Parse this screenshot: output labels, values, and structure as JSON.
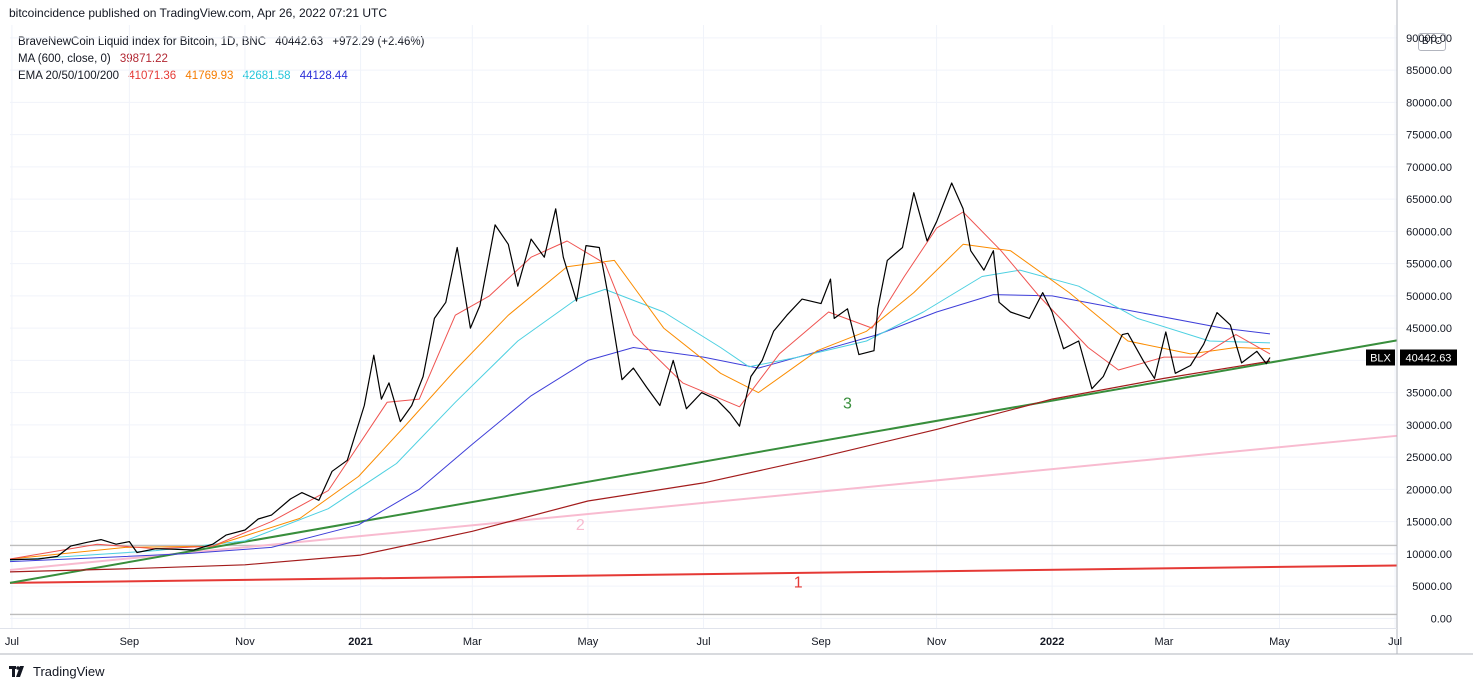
{
  "header": {
    "text": "bitcoincidence published on TradingView.com, Apr 26, 2022 07:21 UTC"
  },
  "legend": {
    "symbol": {
      "label": "BraveNewCoin Liquid Index for Bitcoin, 1D, BNC",
      "value": "40442.63",
      "change": "+972.29 (+2.46%)"
    },
    "ma": {
      "label": "MA (600, close, 0)",
      "value": "39871.22",
      "color": "#b22833"
    },
    "ema": {
      "label": "EMA 20/50/100/200",
      "values": [
        "41071.36",
        "41769.93",
        "42681.58",
        "44128.44"
      ],
      "colors": [
        "#e53935",
        "#f57c00",
        "#26c6da",
        "#2a2ed8"
      ]
    }
  },
  "currency_badge": "BTC",
  "footer": {
    "logo_text": "TradingView"
  },
  "colors": {
    "price": "#000000",
    "ema20": "#ef5350",
    "ema50": "#fb8c00",
    "ema100": "#4dd0e1",
    "ema200": "#3f3fd9",
    "ma600": "#a31c1c",
    "line1": "#e53935",
    "line2": "#f8bbd0",
    "line3": "#388e3c",
    "grid": "#f0f3fa",
    "hline": "#bdbdbd",
    "badge_bg": "#000000",
    "badge_fg": "#ffffff"
  },
  "chart_data": {
    "type": "line",
    "title": "",
    "y_axis": {
      "ticks": [
        "0.00",
        "5000.00",
        "10000.00",
        "15000.00",
        "20000.00",
        "25000.00",
        "30000.00",
        "35000.00",
        "40000.00",
        "45000.00",
        "50000.00",
        "55000.00",
        "60000.00",
        "65000.00",
        "70000.00",
        "75000.00",
        "80000.00",
        "85000.00",
        "90000.00"
      ],
      "ylim": [
        -1500,
        92000
      ]
    },
    "x_axis": {
      "ticks": [
        {
          "label": "Jul",
          "date": "2020-07-01",
          "bold": false
        },
        {
          "label": "Sep",
          "date": "2020-09-01",
          "bold": false
        },
        {
          "label": "Nov",
          "date": "2020-11-01",
          "bold": false
        },
        {
          "label": "2021",
          "date": "2021-01-01",
          "bold": true
        },
        {
          "label": "Mar",
          "date": "2021-03-01",
          "bold": false
        },
        {
          "label": "May",
          "date": "2021-05-01",
          "bold": false
        },
        {
          "label": "Jul",
          "date": "2021-07-01",
          "bold": false
        },
        {
          "label": "Sep",
          "date": "2021-09-01",
          "bold": false
        },
        {
          "label": "Nov",
          "date": "2021-11-01",
          "bold": false
        },
        {
          "label": "2022",
          "date": "2022-01-01",
          "bold": true
        },
        {
          "label": "Mar",
          "date": "2022-03-01",
          "bold": false
        },
        {
          "label": "May",
          "date": "2022-05-01",
          "bold": false
        },
        {
          "label": "Jul",
          "date": "2022-07-01",
          "bold": false
        }
      ],
      "xlim": [
        "2020-06-30",
        "2022-07-02"
      ]
    },
    "last_price": {
      "label": "BLX",
      "value": "40442.63",
      "y": 40442.63
    },
    "series": [
      {
        "key": "price",
        "points": [
          [
            "2020-06-30",
            9100
          ],
          [
            "2020-07-15",
            9200
          ],
          [
            "2020-07-25",
            9600
          ],
          [
            "2020-08-01",
            11200
          ],
          [
            "2020-08-10",
            11800
          ],
          [
            "2020-08-17",
            12200
          ],
          [
            "2020-08-25",
            11500
          ],
          [
            "2020-09-01",
            11900
          ],
          [
            "2020-09-05",
            10200
          ],
          [
            "2020-09-15",
            10800
          ],
          [
            "2020-09-25",
            10700
          ],
          [
            "2020-10-05",
            10600
          ],
          [
            "2020-10-15",
            11500
          ],
          [
            "2020-10-22",
            12900
          ],
          [
            "2020-11-01",
            13700
          ],
          [
            "2020-11-08",
            15400
          ],
          [
            "2020-11-15",
            16000
          ],
          [
            "2020-11-25",
            18500
          ],
          [
            "2020-12-01",
            19500
          ],
          [
            "2020-12-10",
            18300
          ],
          [
            "2020-12-17",
            22800
          ],
          [
            "2020-12-25",
            24500
          ],
          [
            "2021-01-03",
            33000
          ],
          [
            "2021-01-08",
            40800
          ],
          [
            "2021-01-12",
            34000
          ],
          [
            "2021-01-16",
            36500
          ],
          [
            "2021-01-22",
            30500
          ],
          [
            "2021-01-28",
            33000
          ],
          [
            "2021-02-03",
            37500
          ],
          [
            "2021-02-09",
            46500
          ],
          [
            "2021-02-15",
            49000
          ],
          [
            "2021-02-21",
            57500
          ],
          [
            "2021-02-28",
            45000
          ],
          [
            "2021-03-05",
            48500
          ],
          [
            "2021-03-13",
            61000
          ],
          [
            "2021-03-20",
            58000
          ],
          [
            "2021-03-25",
            51500
          ],
          [
            "2021-04-01",
            58800
          ],
          [
            "2021-04-08",
            56000
          ],
          [
            "2021-04-14",
            63500
          ],
          [
            "2021-04-18",
            56000
          ],
          [
            "2021-04-25",
            49200
          ],
          [
            "2021-04-30",
            57800
          ],
          [
            "2021-05-07",
            57500
          ],
          [
            "2021-05-12",
            49500
          ],
          [
            "2021-05-19",
            37000
          ],
          [
            "2021-05-25",
            38800
          ],
          [
            "2021-06-01",
            35800
          ],
          [
            "2021-06-08",
            33000
          ],
          [
            "2021-06-15",
            40000
          ],
          [
            "2021-06-22",
            32500
          ],
          [
            "2021-06-30",
            35000
          ],
          [
            "2021-07-08",
            33900
          ],
          [
            "2021-07-15",
            31800
          ],
          [
            "2021-07-20",
            29800
          ],
          [
            "2021-07-26",
            37500
          ],
          [
            "2021-08-01",
            40000
          ],
          [
            "2021-08-07",
            44500
          ],
          [
            "2021-08-14",
            47000
          ],
          [
            "2021-08-22",
            49500
          ],
          [
            "2021-09-01",
            48800
          ],
          [
            "2021-09-06",
            52600
          ],
          [
            "2021-09-08",
            46500
          ],
          [
            "2021-09-15",
            48000
          ],
          [
            "2021-09-21",
            40900
          ],
          [
            "2021-09-29",
            41500
          ],
          [
            "2021-10-01",
            48000
          ],
          [
            "2021-10-06",
            55500
          ],
          [
            "2021-10-14",
            57500
          ],
          [
            "2021-10-20",
            66000
          ],
          [
            "2021-10-27",
            58500
          ],
          [
            "2021-11-01",
            61500
          ],
          [
            "2021-11-09",
            67500
          ],
          [
            "2021-11-15",
            63500
          ],
          [
            "2021-11-19",
            57000
          ],
          [
            "2021-11-26",
            54000
          ],
          [
            "2021-12-01",
            57000
          ],
          [
            "2021-12-04",
            49000
          ],
          [
            "2021-12-10",
            47500
          ],
          [
            "2021-12-20",
            46500
          ],
          [
            "2021-12-27",
            50500
          ],
          [
            "2022-01-01",
            47500
          ],
          [
            "2022-01-07",
            41800
          ],
          [
            "2022-01-15",
            43000
          ],
          [
            "2022-01-22",
            35600
          ],
          [
            "2022-01-28",
            37500
          ],
          [
            "2022-02-07",
            44000
          ],
          [
            "2022-02-10",
            44200
          ],
          [
            "2022-02-18",
            40000
          ],
          [
            "2022-02-24",
            37200
          ],
          [
            "2022-03-02",
            44400
          ],
          [
            "2022-03-07",
            38000
          ],
          [
            "2022-03-15",
            39200
          ],
          [
            "2022-03-22",
            42500
          ],
          [
            "2022-03-29",
            47400
          ],
          [
            "2022-04-05",
            45500
          ],
          [
            "2022-04-11",
            39600
          ],
          [
            "2022-04-15",
            40500
          ],
          [
            "2022-04-19",
            41400
          ],
          [
            "2022-04-24",
            39500
          ],
          [
            "2022-04-26",
            40442
          ]
        ]
      },
      {
        "key": "ema20",
        "points": [
          [
            "2020-06-30",
            9200
          ],
          [
            "2020-08-15",
            11500
          ],
          [
            "2020-09-15",
            10800
          ],
          [
            "2020-10-15",
            11200
          ],
          [
            "2020-11-15",
            15000
          ],
          [
            "2020-12-15",
            19800
          ],
          [
            "2021-01-15",
            33500
          ],
          [
            "2021-02-01",
            34000
          ],
          [
            "2021-02-20",
            47000
          ],
          [
            "2021-03-10",
            50000
          ],
          [
            "2021-04-01",
            56000
          ],
          [
            "2021-04-20",
            58500
          ],
          [
            "2021-05-10",
            55000
          ],
          [
            "2021-05-25",
            44000
          ],
          [
            "2021-06-20",
            36500
          ],
          [
            "2021-07-20",
            32800
          ],
          [
            "2021-08-10",
            41000
          ],
          [
            "2021-09-05",
            47500
          ],
          [
            "2021-09-28",
            45000
          ],
          [
            "2021-10-15",
            53000
          ],
          [
            "2021-11-01",
            60500
          ],
          [
            "2021-11-15",
            63000
          ],
          [
            "2021-12-05",
            57000
          ],
          [
            "2021-12-25",
            50000
          ],
          [
            "2022-01-20",
            42000
          ],
          [
            "2022-02-05",
            38500
          ],
          [
            "2022-03-01",
            40500
          ],
          [
            "2022-03-20",
            40500
          ],
          [
            "2022-04-08",
            44000
          ],
          [
            "2022-04-26",
            41000
          ]
        ]
      },
      {
        "key": "ema50",
        "points": [
          [
            "2020-06-30",
            9200
          ],
          [
            "2020-08-30",
            11000
          ],
          [
            "2020-10-15",
            11200
          ],
          [
            "2020-11-30",
            15500
          ],
          [
            "2020-12-31",
            22000
          ],
          [
            "2021-01-25",
            30000
          ],
          [
            "2021-02-20",
            38500
          ],
          [
            "2021-03-20",
            47000
          ],
          [
            "2021-04-20",
            54500
          ],
          [
            "2021-05-15",
            55500
          ],
          [
            "2021-06-10",
            45000
          ],
          [
            "2021-07-10",
            38000
          ],
          [
            "2021-07-30",
            35000
          ],
          [
            "2021-08-30",
            41500
          ],
          [
            "2021-09-25",
            44500
          ],
          [
            "2021-10-20",
            50500
          ],
          [
            "2021-11-15",
            58000
          ],
          [
            "2021-12-10",
            57000
          ],
          [
            "2022-01-10",
            50500
          ],
          [
            "2022-02-10",
            43000
          ],
          [
            "2022-03-15",
            41000
          ],
          [
            "2022-04-08",
            42000
          ],
          [
            "2022-04-26",
            41800
          ]
        ]
      },
      {
        "key": "ema100",
        "points": [
          [
            "2020-06-30",
            9000
          ],
          [
            "2020-09-15",
            10500
          ],
          [
            "2020-11-01",
            12000
          ],
          [
            "2020-12-15",
            17000
          ],
          [
            "2021-01-20",
            24000
          ],
          [
            "2021-02-20",
            33500
          ],
          [
            "2021-03-25",
            43000
          ],
          [
            "2021-04-25",
            49500
          ],
          [
            "2021-05-10",
            51000
          ],
          [
            "2021-06-10",
            47500
          ],
          [
            "2021-07-10",
            42000
          ],
          [
            "2021-07-25",
            39000
          ],
          [
            "2021-08-20",
            40500
          ],
          [
            "2021-09-25",
            43000
          ],
          [
            "2021-10-25",
            47500
          ],
          [
            "2021-11-25",
            53000
          ],
          [
            "2021-12-15",
            54000
          ],
          [
            "2022-01-15",
            51500
          ],
          [
            "2022-02-15",
            46500
          ],
          [
            "2022-03-25",
            43000
          ],
          [
            "2022-04-26",
            42700
          ]
        ]
      },
      {
        "key": "ema200",
        "points": [
          [
            "2020-06-30",
            8800
          ],
          [
            "2020-09-30",
            10000
          ],
          [
            "2020-11-15",
            11000
          ],
          [
            "2020-12-31",
            14500
          ],
          [
            "2021-02-01",
            20000
          ],
          [
            "2021-03-01",
            27000
          ],
          [
            "2021-04-01",
            34500
          ],
          [
            "2021-05-01",
            40000
          ],
          [
            "2021-05-25",
            42000
          ],
          [
            "2021-07-01",
            40500
          ],
          [
            "2021-07-30",
            38800
          ],
          [
            "2021-09-01",
            41500
          ],
          [
            "2021-10-01",
            44000
          ],
          [
            "2021-11-01",
            47500
          ],
          [
            "2021-12-01",
            50200
          ],
          [
            "2022-01-01",
            50000
          ],
          [
            "2022-02-15",
            47500
          ],
          [
            "2022-04-01",
            45000
          ],
          [
            "2022-04-26",
            44100
          ]
        ]
      },
      {
        "key": "ma600",
        "points": [
          [
            "2020-06-30",
            7200
          ],
          [
            "2020-09-01",
            7700
          ],
          [
            "2020-11-01",
            8300
          ],
          [
            "2021-01-01",
            9800
          ],
          [
            "2021-03-01",
            13500
          ],
          [
            "2021-05-01",
            18200
          ],
          [
            "2021-07-01",
            21000
          ],
          [
            "2021-09-01",
            25000
          ],
          [
            "2021-11-01",
            29300
          ],
          [
            "2022-01-01",
            34000
          ],
          [
            "2022-03-01",
            37200
          ],
          [
            "2022-04-26",
            39870
          ]
        ]
      }
    ],
    "trendlines": [
      {
        "label": "1",
        "key": "line1",
        "from": [
          "2020-06-30",
          5500
        ],
        "to": [
          "2022-07-02",
          8200
        ],
        "label_at": [
          "2021-08-20",
          4800
        ]
      },
      {
        "label": "2",
        "key": "line2",
        "from": [
          "2020-06-30",
          7500
        ],
        "to": [
          "2022-07-02",
          28300
        ],
        "label_at": [
          "2021-04-27",
          13700
        ]
      },
      {
        "label": "3",
        "key": "line3",
        "from": [
          "2020-06-30",
          5500
        ],
        "to": [
          "2022-07-02",
          43100
        ],
        "label_at": [
          "2021-09-15",
          32500
        ]
      }
    ],
    "hlines": [
      11300,
      600
    ]
  }
}
